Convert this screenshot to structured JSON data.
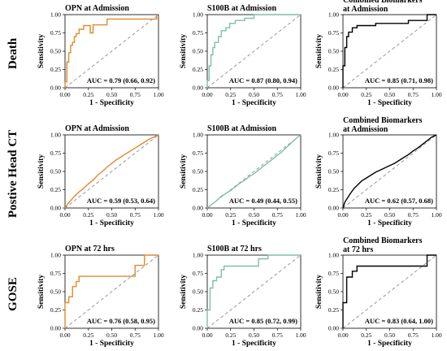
{
  "row_labels": [
    "Death",
    "Postive Head CT",
    "GOSE"
  ],
  "chart_data": [
    {
      "type": "line",
      "title": [
        "OPN at Admission"
      ],
      "xlabel": "1 - Specificity",
      "ylabel": "Sensitivity",
      "xlim": [
        0,
        1
      ],
      "ylim": [
        0,
        1
      ],
      "x_ticks": [
        "0.00",
        "0.25",
        "0.50",
        "0.75",
        "1.00"
      ],
      "y_ticks": [
        "0.00",
        "0.25",
        "0.50",
        "0.75",
        "1.00"
      ],
      "auc": "AUC = 0.79 (0.66, 0.92)",
      "color": "#e08a2c",
      "series": [
        {
          "x": [
            0,
            0,
            0.02,
            0.02,
            0.04,
            0.04,
            0.06,
            0.06,
            0.08,
            0.08,
            0.1,
            0.1,
            0.12,
            0.12,
            0.15,
            0.15,
            0.2,
            0.2,
            0.27,
            0.27,
            0.3,
            0.3,
            0.45,
            0.45,
            0.75,
            0.75,
            0.98,
            0.98
          ],
          "y": [
            0,
            0.08,
            0.08,
            0.35,
            0.35,
            0.48,
            0.48,
            0.58,
            0.58,
            0.62,
            0.62,
            0.7,
            0.7,
            0.74,
            0.74,
            0.8,
            0.8,
            0.85,
            0.85,
            0.75,
            0.75,
            0.86,
            0.86,
            0.94,
            0.94,
            0.94,
            0.94,
            1.0
          ]
        }
      ]
    },
    {
      "type": "line",
      "title": [
        "S100B at Admission"
      ],
      "xlabel": "1 - Specificity",
      "ylabel": "Sensitivity",
      "xlim": [
        0,
        1
      ],
      "ylim": [
        0,
        1
      ],
      "x_ticks": [
        "0.00",
        "0.25",
        "0.50",
        "0.75",
        "1.00"
      ],
      "y_ticks": [
        "0.00",
        "0.25",
        "0.50",
        "0.75",
        "1.00"
      ],
      "auc": "AUC = 0.87 (0.80, 0.94)",
      "color": "#7fbfa8",
      "series": [
        {
          "x": [
            0,
            0,
            0.02,
            0.02,
            0.04,
            0.04,
            0.06,
            0.06,
            0.08,
            0.08,
            0.12,
            0.12,
            0.15,
            0.15,
            0.2,
            0.2,
            0.24,
            0.24,
            0.3,
            0.3,
            0.4,
            0.4,
            0.5,
            0.5,
            0.7,
            0.7,
            1.0
          ],
          "y": [
            0,
            0.1,
            0.1,
            0.3,
            0.3,
            0.45,
            0.45,
            0.55,
            0.55,
            0.62,
            0.62,
            0.7,
            0.7,
            0.78,
            0.78,
            0.82,
            0.82,
            0.88,
            0.88,
            0.92,
            0.92,
            0.95,
            0.95,
            1.0,
            1.0,
            1.0,
            1.0
          ]
        }
      ]
    },
    {
      "type": "line",
      "title": [
        "Combined Biomarkers",
        "at Admission"
      ],
      "xlabel": "1 - Specificity",
      "ylabel": "Sensitivity",
      "xlim": [
        0,
        1
      ],
      "ylim": [
        0,
        1
      ],
      "x_ticks": [
        "0.00",
        "0.25",
        "0.50",
        "0.75",
        "1.00"
      ],
      "y_ticks": [
        "0.00",
        "0.25",
        "0.50",
        "0.75",
        "1.00"
      ],
      "auc": "AUC = 0.85 (0.71, 0.98)",
      "color": "#000000",
      "series": [
        {
          "x": [
            0,
            0,
            0.02,
            0.02,
            0.04,
            0.04,
            0.06,
            0.06,
            0.1,
            0.1,
            0.15,
            0.15,
            0.2,
            0.2,
            0.35,
            0.35,
            0.7,
            0.7,
            0.9,
            0.9,
            1.0
          ],
          "y": [
            0,
            0.3,
            0.3,
            0.55,
            0.55,
            0.7,
            0.7,
            0.76,
            0.76,
            0.82,
            0.82,
            0.85,
            0.85,
            0.85,
            0.85,
            0.88,
            0.88,
            0.92,
            0.92,
            1.0,
            1.0
          ]
        }
      ]
    },
    {
      "type": "line",
      "title": [
        "OPN at Admission"
      ],
      "xlabel": "1 - Specificity",
      "ylabel": "Sensitivity",
      "xlim": [
        0,
        1
      ],
      "ylim": [
        0,
        1
      ],
      "x_ticks": [
        "0.00",
        "0.25",
        "0.50",
        "0.75",
        "1.00"
      ],
      "y_ticks": [
        "0.00",
        "0.25",
        "0.50",
        "0.75",
        "1.00"
      ],
      "auc": "AUC = 0.59 (0.53, 0.64)",
      "color": "#e08a2c",
      "series": [
        {
          "x": [
            0,
            0.03,
            0.06,
            0.1,
            0.15,
            0.2,
            0.25,
            0.3,
            0.35,
            0.4,
            0.45,
            0.5,
            0.55,
            0.6,
            0.65,
            0.7,
            0.75,
            0.8,
            0.85,
            0.9,
            0.95,
            1.0
          ],
          "y": [
            0,
            0.06,
            0.1,
            0.16,
            0.22,
            0.27,
            0.33,
            0.38,
            0.45,
            0.5,
            0.56,
            0.61,
            0.66,
            0.7,
            0.74,
            0.78,
            0.82,
            0.86,
            0.9,
            0.94,
            0.97,
            1.0
          ]
        }
      ]
    },
    {
      "type": "line",
      "title": [
        "S100B at Admission"
      ],
      "xlabel": "1 - Specificity",
      "ylabel": "Sensitivity",
      "xlim": [
        0,
        1
      ],
      "ylim": [
        0,
        1
      ],
      "x_ticks": [
        "0.00",
        "0.25",
        "0.50",
        "0.75",
        "1.00"
      ],
      "y_ticks": [
        "0.00",
        "0.25",
        "0.50",
        "0.75",
        "1.00"
      ],
      "auc": "AUC = 0.49 (0.44, 0.55)",
      "color": "#7fbfa8",
      "series": [
        {
          "x": [
            0,
            0.05,
            0.1,
            0.15,
            0.2,
            0.25,
            0.3,
            0.35,
            0.4,
            0.45,
            0.5,
            0.55,
            0.6,
            0.65,
            0.7,
            0.75,
            0.8,
            0.85,
            0.9,
            0.95,
            1.0
          ],
          "y": [
            0,
            0.05,
            0.1,
            0.16,
            0.2,
            0.24,
            0.29,
            0.34,
            0.38,
            0.43,
            0.47,
            0.52,
            0.57,
            0.62,
            0.67,
            0.72,
            0.77,
            0.83,
            0.89,
            0.95,
            1.0
          ]
        }
      ]
    },
    {
      "type": "line",
      "title": [
        "Combined Biomarkers",
        "at Admission"
      ],
      "xlabel": "1 - Specificity",
      "ylabel": "Sensitivity",
      "xlim": [
        0,
        1
      ],
      "ylim": [
        0,
        1
      ],
      "x_ticks": [
        "0.00",
        "0.25",
        "0.50",
        "0.75",
        "1.00"
      ],
      "y_ticks": [
        "0.00",
        "0.25",
        "0.50",
        "0.75",
        "1.00"
      ],
      "auc": "AUC = 0.62 (0.57, 0.68)",
      "color": "#000000",
      "series": [
        {
          "x": [
            0,
            0.02,
            0.05,
            0.08,
            0.12,
            0.16,
            0.2,
            0.25,
            0.3,
            0.35,
            0.4,
            0.45,
            0.5,
            0.55,
            0.6,
            0.65,
            0.7,
            0.75,
            0.8,
            0.85,
            0.9,
            0.95,
            1.0
          ],
          "y": [
            0,
            0.08,
            0.14,
            0.2,
            0.27,
            0.32,
            0.37,
            0.41,
            0.45,
            0.49,
            0.52,
            0.55,
            0.58,
            0.61,
            0.65,
            0.69,
            0.73,
            0.78,
            0.82,
            0.87,
            0.92,
            0.97,
            1.0
          ]
        }
      ]
    },
    {
      "type": "line",
      "title": [
        "OPN at 72 hrs"
      ],
      "xlabel": "1 - Specificity",
      "ylabel": "Sensitivity",
      "xlim": [
        0,
        1
      ],
      "ylim": [
        0,
        1
      ],
      "x_ticks": [
        "0.00",
        "0.25",
        "0.50",
        "0.75",
        "1.00"
      ],
      "y_ticks": [
        "0.00",
        "0.25",
        "0.50",
        "0.75",
        "1.00"
      ],
      "auc": "AUC = 0.76 (0.58, 0.95)",
      "color": "#e08a2c",
      "series": [
        {
          "x": [
            0,
            0,
            0.04,
            0.04,
            0.08,
            0.08,
            0.12,
            0.12,
            0.15,
            0.15,
            0.75,
            0.75,
            0.85,
            0.85,
            1.0
          ],
          "y": [
            0,
            0.35,
            0.35,
            0.43,
            0.43,
            0.57,
            0.57,
            0.64,
            0.64,
            0.71,
            0.71,
            0.86,
            0.86,
            1.0,
            1.0
          ]
        }
      ]
    },
    {
      "type": "line",
      "title": [
        "S100B at 72 hrs"
      ],
      "xlabel": "1 - Specificity",
      "ylabel": "Sensitivity",
      "xlim": [
        0,
        1
      ],
      "ylim": [
        0,
        1
      ],
      "x_ticks": [
        "0.00",
        "0.25",
        "0.50",
        "0.75",
        "1.00"
      ],
      "y_ticks": [
        "0.00",
        "0.25",
        "0.50",
        "0.75",
        "1.00"
      ],
      "auc": "AUC = 0.85 (0.72, 0.99)",
      "color": "#7fbfa8",
      "series": [
        {
          "x": [
            0,
            0,
            0.03,
            0.03,
            0.06,
            0.06,
            0.1,
            0.1,
            0.15,
            0.15,
            0.18,
            0.18,
            0.55,
            0.55,
            0.65,
            0.65,
            1.0
          ],
          "y": [
            0,
            0.25,
            0.25,
            0.55,
            0.55,
            0.65,
            0.65,
            0.7,
            0.7,
            0.8,
            0.8,
            0.85,
            0.85,
            0.95,
            0.95,
            1.0,
            1.0
          ]
        }
      ]
    },
    {
      "type": "line",
      "title": [
        "Combined Biomarkers",
        "at 72 hrs"
      ],
      "xlabel": "1 - Specificity",
      "ylabel": "Sensitivity",
      "xlim": [
        0,
        1
      ],
      "ylim": [
        0,
        1
      ],
      "x_ticks": [
        "0.00",
        "0.25",
        "0.50",
        "0.75",
        "1.00"
      ],
      "y_ticks": [
        "0.00",
        "0.25",
        "0.50",
        "0.75",
        "1.00"
      ],
      "auc": "AUC = 0.83 (0.64, 1.00)",
      "color": "#000000",
      "series": [
        {
          "x": [
            0,
            0,
            0.04,
            0.04,
            0.1,
            0.1,
            0.15,
            0.15,
            0.9,
            0.9,
            1.0
          ],
          "y": [
            0,
            0.35,
            0.35,
            0.7,
            0.7,
            0.78,
            0.78,
            0.85,
            0.85,
            1.0,
            1.0
          ]
        }
      ]
    }
  ]
}
